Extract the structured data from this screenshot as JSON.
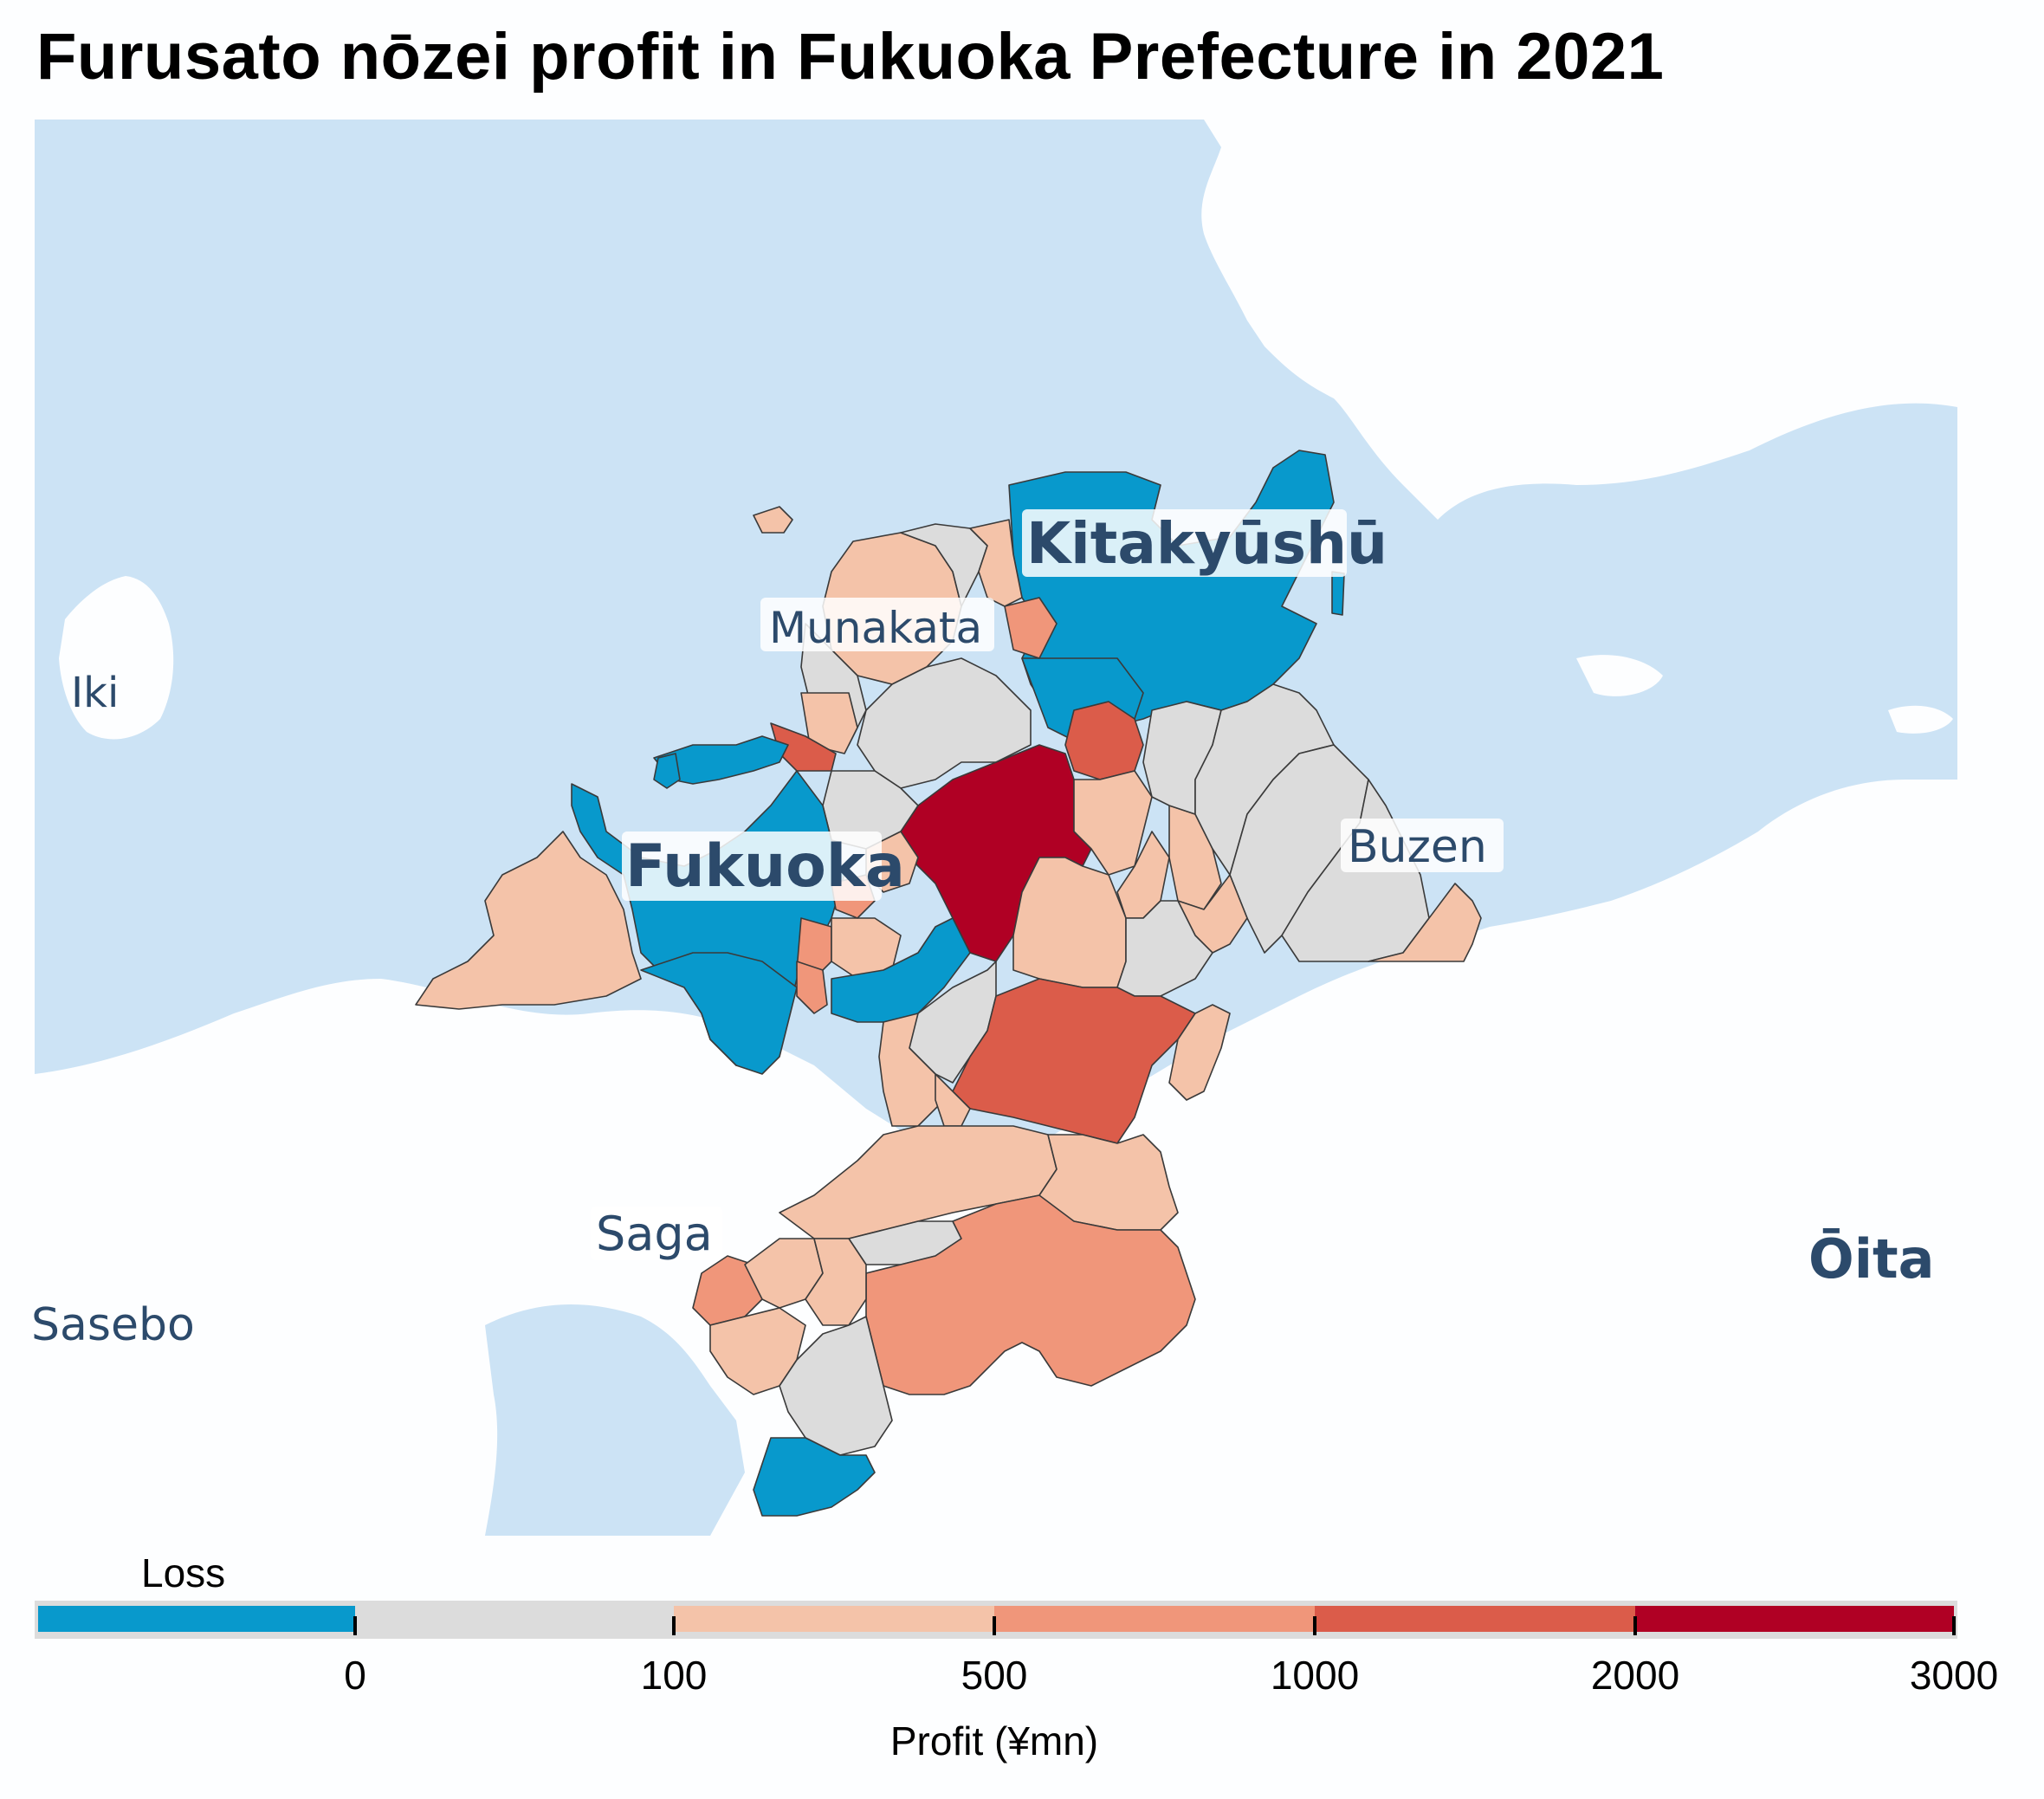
{
  "title": "Furusato nōzei profit in Fukuoka Prefecture in 2021",
  "colors": {
    "sea": "#cce3f5",
    "land": "#fdfeff",
    "loss": "#0899cc",
    "bin_0_100": "#dcdcdc",
    "bin_100_500": "#f4c3a9",
    "bin_500_1000": "#f0967a",
    "bin_1000_2000": "#db5c4a",
    "bin_2000_3000": "#b00024"
  },
  "places": {
    "kitakyushu": "Kitakyūshū",
    "munakata": "Munakata",
    "iki": "Iki",
    "fukuoka": "Fukuoka",
    "buzen": "Buzen",
    "saga": "Saga",
    "sasebo": "Sasebo",
    "oita": "Ōita"
  },
  "legend": {
    "loss_label": "Loss",
    "ticks": [
      "0",
      "100",
      "500",
      "1000",
      "2000",
      "3000"
    ],
    "axis_label": "Profit (¥mn)"
  },
  "chart_data": {
    "type": "choropleth",
    "title": "Furusato nōzei profit in Fukuoka Prefecture in 2021",
    "legend_title": "Profit (¥mn)",
    "bins": [
      {
        "label": "Loss",
        "min": null,
        "max": 0,
        "color": "#0899cc"
      },
      {
        "label": "0–100",
        "min": 0,
        "max": 100,
        "color": "#dcdcdc"
      },
      {
        "label": "100–500",
        "min": 100,
        "max": 500,
        "color": "#f4c3a9"
      },
      {
        "label": "500–1000",
        "min": 500,
        "max": 1000,
        "color": "#f0967a"
      },
      {
        "label": "1000–2000",
        "min": 1000,
        "max": 2000,
        "color": "#db5c4a"
      },
      {
        "label": "2000–3000",
        "min": 2000,
        "max": 3000,
        "color": "#b00024"
      }
    ]
  }
}
